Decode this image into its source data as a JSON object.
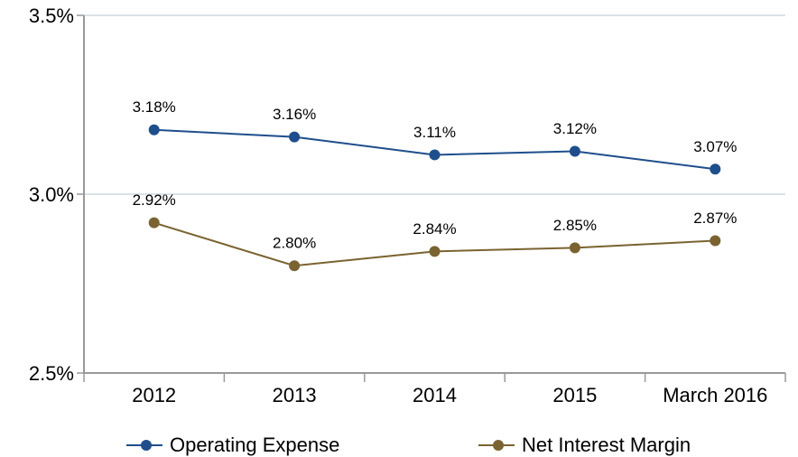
{
  "chart_data": {
    "type": "line",
    "categories": [
      "2012",
      "2013",
      "2014",
      "2015",
      "March 2016"
    ],
    "series": [
      {
        "name": "Operating Expense",
        "color": "#1f4e8c",
        "values": [
          3.18,
          3.16,
          3.11,
          3.12,
          3.07
        ],
        "value_labels": [
          "3.18%",
          "3.16%",
          "3.11%",
          "3.12%",
          "3.07%"
        ]
      },
      {
        "name": "Net Interest Margin",
        "color": "#7a6330",
        "values": [
          2.92,
          2.8,
          2.84,
          2.85,
          2.87
        ],
        "value_labels": [
          "2.92%",
          "2.80%",
          "2.84%",
          "2.85%",
          "2.87%"
        ]
      }
    ],
    "ylim": [
      2.5,
      3.5
    ],
    "yticks": [
      {
        "value": 2.5,
        "label": "2.5%"
      },
      {
        "value": 3.0,
        "label": "3.0%"
      },
      {
        "value": 3.5,
        "label": "3.5%"
      }
    ],
    "grid": true,
    "legend": "bottom"
  }
}
